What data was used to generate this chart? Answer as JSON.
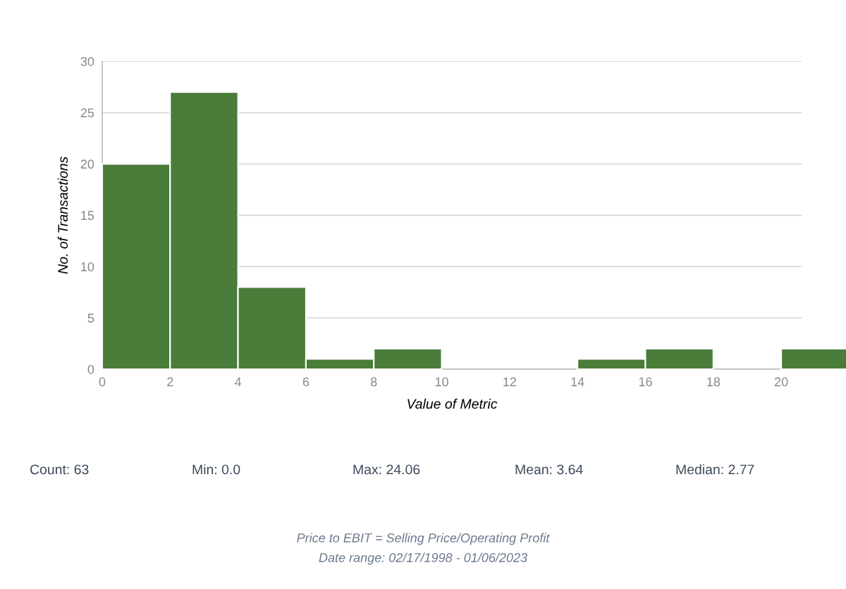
{
  "chart_data": {
    "type": "histogram",
    "xlabel": "Value of Metric",
    "ylabel": "No. of Transactions",
    "bins": [
      0,
      2,
      4,
      6,
      8,
      10,
      12,
      14,
      16,
      18,
      20,
      22
    ],
    "values": [
      20,
      27,
      8,
      1,
      2,
      0,
      0,
      1,
      2,
      0,
      2
    ],
    "color": "#4a7c3a",
    "xlim": [
      0,
      20.6
    ],
    "xticks": [
      0,
      2,
      4,
      6,
      8,
      10,
      12,
      14,
      16,
      18,
      20
    ],
    "ylim": [
      0,
      30
    ],
    "yticks": [
      0,
      5,
      10,
      15,
      20,
      25,
      30
    ],
    "grid": "y",
    "legend": false,
    "annotations": [
      "Count: 63",
      "Min: 0.0",
      "Max: 24.06",
      "Mean: 3.64",
      "Median: 2.77",
      "Price to EBIT = Selling Price/Operating Profit",
      "Date range: 02/17/1998 - 01/06/2023"
    ]
  }
}
